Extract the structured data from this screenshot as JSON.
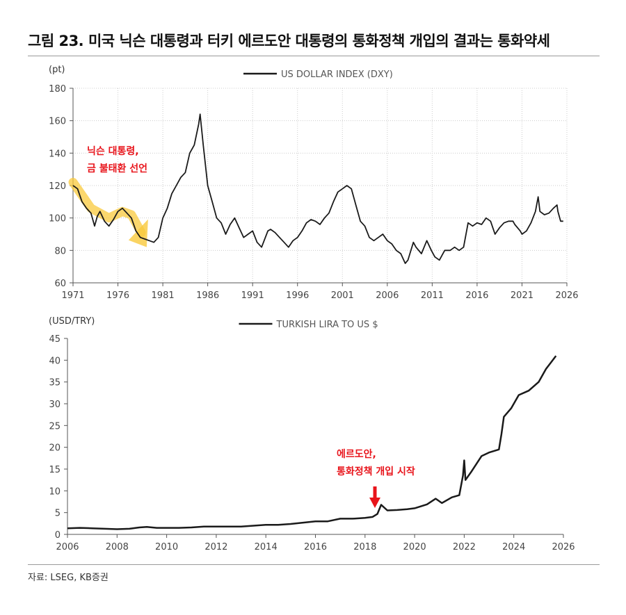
{
  "title": "그림 23. 미국 닉슨 대통령과 터키 에르도안 대통령의 통화정책 개입의 결과는 통화약세",
  "source": "자료: LSEG, KB증권",
  "colors": {
    "line": "#1a1a1a",
    "highlight": "#f9c93c",
    "annotation": "#e8141b",
    "grid": "#cccccc"
  },
  "chart_data": [
    {
      "type": "line",
      "title": "",
      "ylabel": "(pt)",
      "legend": [
        "US DOLLAR INDEX (DXY)"
      ],
      "legend_position": "top-center",
      "xlim": [
        1971,
        2026
      ],
      "ylim": [
        60,
        180
      ],
      "xticks": [
        1971,
        1976,
        1981,
        1986,
        1991,
        1996,
        2001,
        2006,
        2011,
        2016,
        2021,
        2026
      ],
      "yticks": [
        60,
        80,
        100,
        120,
        140,
        160,
        180
      ],
      "grid": true,
      "annotation": {
        "lines": [
          "닉슨 대통령,",
          "금 불태환 선언"
        ]
      },
      "series": [
        {
          "name": "US DOLLAR INDEX (DXY)",
          "x": [
            1971,
            1971.5,
            1972,
            1972.5,
            1973,
            1973.4,
            1973.7,
            1974,
            1974.5,
            1975,
            1975.5,
            1976,
            1976.5,
            1977,
            1977.5,
            1978,
            1978.5,
            1979,
            1979.5,
            1980,
            1980.5,
            1981,
            1981.5,
            1982,
            1982.5,
            1983,
            1983.5,
            1984,
            1984.5,
            1985,
            1985.15,
            1985.5,
            1986,
            1986.5,
            1987,
            1987.5,
            1988,
            1988.5,
            1989,
            1989.5,
            1990,
            1990.5,
            1991,
            1991.5,
            1992,
            1992.7,
            1993,
            1993.5,
            1994,
            1994.5,
            1995,
            1995.5,
            1996,
            1996.5,
            1997,
            1997.5,
            1998,
            1998.5,
            1999,
            1999.5,
            2000,
            2000.5,
            2001,
            2001.5,
            2002,
            2002.5,
            2003,
            2003.5,
            2004,
            2004.5,
            2005,
            2005.5,
            2006,
            2006.5,
            2007,
            2007.5,
            2008,
            2008.3,
            2008.9,
            2009.2,
            2009.8,
            2010.4,
            2010.9,
            2011.3,
            2011.8,
            2012.4,
            2013,
            2013.5,
            2014,
            2014.5,
            2015,
            2015.5,
            2016,
            2016.5,
            2017,
            2017.5,
            2018,
            2018.5,
            2019,
            2019.5,
            2020,
            2020.2,
            2020.8,
            2021,
            2021.5,
            2022,
            2022.5,
            2022.8,
            2023,
            2023.5,
            2024,
            2024.5,
            2024.9,
            2025,
            2025.3,
            2025.6
          ],
          "values": [
            120,
            118,
            110,
            106,
            103,
            95,
            101,
            104,
            98,
            95,
            99,
            104,
            106,
            103,
            100,
            92,
            88,
            87,
            86,
            85,
            88,
            100,
            106,
            115,
            120,
            125,
            128,
            140,
            145,
            158,
            164,
            145,
            120,
            110,
            100,
            97,
            90,
            96,
            100,
            94,
            88,
            90,
            92,
            85,
            82,
            92,
            93,
            91,
            88,
            85,
            82,
            86,
            88,
            92,
            97,
            99,
            98,
            96,
            100,
            103,
            110,
            116,
            118,
            120,
            118,
            108,
            98,
            95,
            88,
            86,
            88,
            90,
            86,
            84,
            80,
            78,
            72,
            74,
            85,
            82,
            78,
            86,
            80,
            76,
            74,
            80,
            80,
            82,
            80,
            82,
            97,
            95,
            97,
            96,
            100,
            98,
            90,
            94,
            97,
            98,
            98,
            96,
            92,
            90,
            92,
            97,
            104,
            113,
            104,
            102,
            103,
            106,
            108,
            104,
            98,
            98
          ]
        }
      ]
    },
    {
      "type": "line",
      "title": "",
      "ylabel": "(USD/TRY)",
      "legend": [
        "TURKISH LIRA TO US $"
      ],
      "legend_position": "top-center",
      "xlim": [
        2006,
        2026
      ],
      "ylim": [
        0,
        45
      ],
      "xticks": [
        2006,
        2008,
        2010,
        2012,
        2014,
        2016,
        2018,
        2020,
        2022,
        2024,
        2026
      ],
      "yticks": [
        0,
        5,
        10,
        15,
        20,
        25,
        30,
        35,
        40,
        45
      ],
      "grid": false,
      "annotation": {
        "lines": [
          "에르도안,",
          "통화정책 개입 시작"
        ]
      },
      "series": [
        {
          "name": "TURKISH LIRA TO US $",
          "x": [
            2006,
            2006.5,
            2007,
            2007.5,
            2008,
            2008.5,
            2008.9,
            2009.2,
            2009.6,
            2010,
            2010.5,
            2011,
            2011.5,
            2012,
            2012.5,
            2013,
            2013.5,
            2014,
            2014.5,
            2015,
            2015.5,
            2016,
            2016.5,
            2017,
            2017.5,
            2018,
            2018.3,
            2018.5,
            2018.65,
            2018.9,
            2019.3,
            2019.7,
            2020,
            2020.5,
            2020.85,
            2021.1,
            2021.5,
            2021.8,
            2021.95,
            2022.0,
            2022.05,
            2022.3,
            2022.7,
            2023,
            2023.4,
            2023.5,
            2023.6,
            2023.9,
            2024.2,
            2024.6,
            2025,
            2025.3,
            2025.5,
            2025.7
          ],
          "values": [
            1.4,
            1.5,
            1.4,
            1.3,
            1.2,
            1.3,
            1.6,
            1.7,
            1.5,
            1.5,
            1.5,
            1.6,
            1.8,
            1.8,
            1.8,
            1.8,
            2.0,
            2.2,
            2.2,
            2.4,
            2.7,
            3.0,
            3.0,
            3.6,
            3.6,
            3.8,
            4.0,
            4.7,
            6.8,
            5.5,
            5.6,
            5.8,
            6.0,
            6.9,
            8.2,
            7.2,
            8.5,
            9.0,
            13.5,
            17.0,
            12.5,
            14.5,
            18.0,
            18.8,
            19.5,
            23.0,
            27.0,
            29.0,
            32.0,
            33.0,
            35.0,
            38.0,
            39.5,
            41.0
          ]
        }
      ]
    }
  ]
}
